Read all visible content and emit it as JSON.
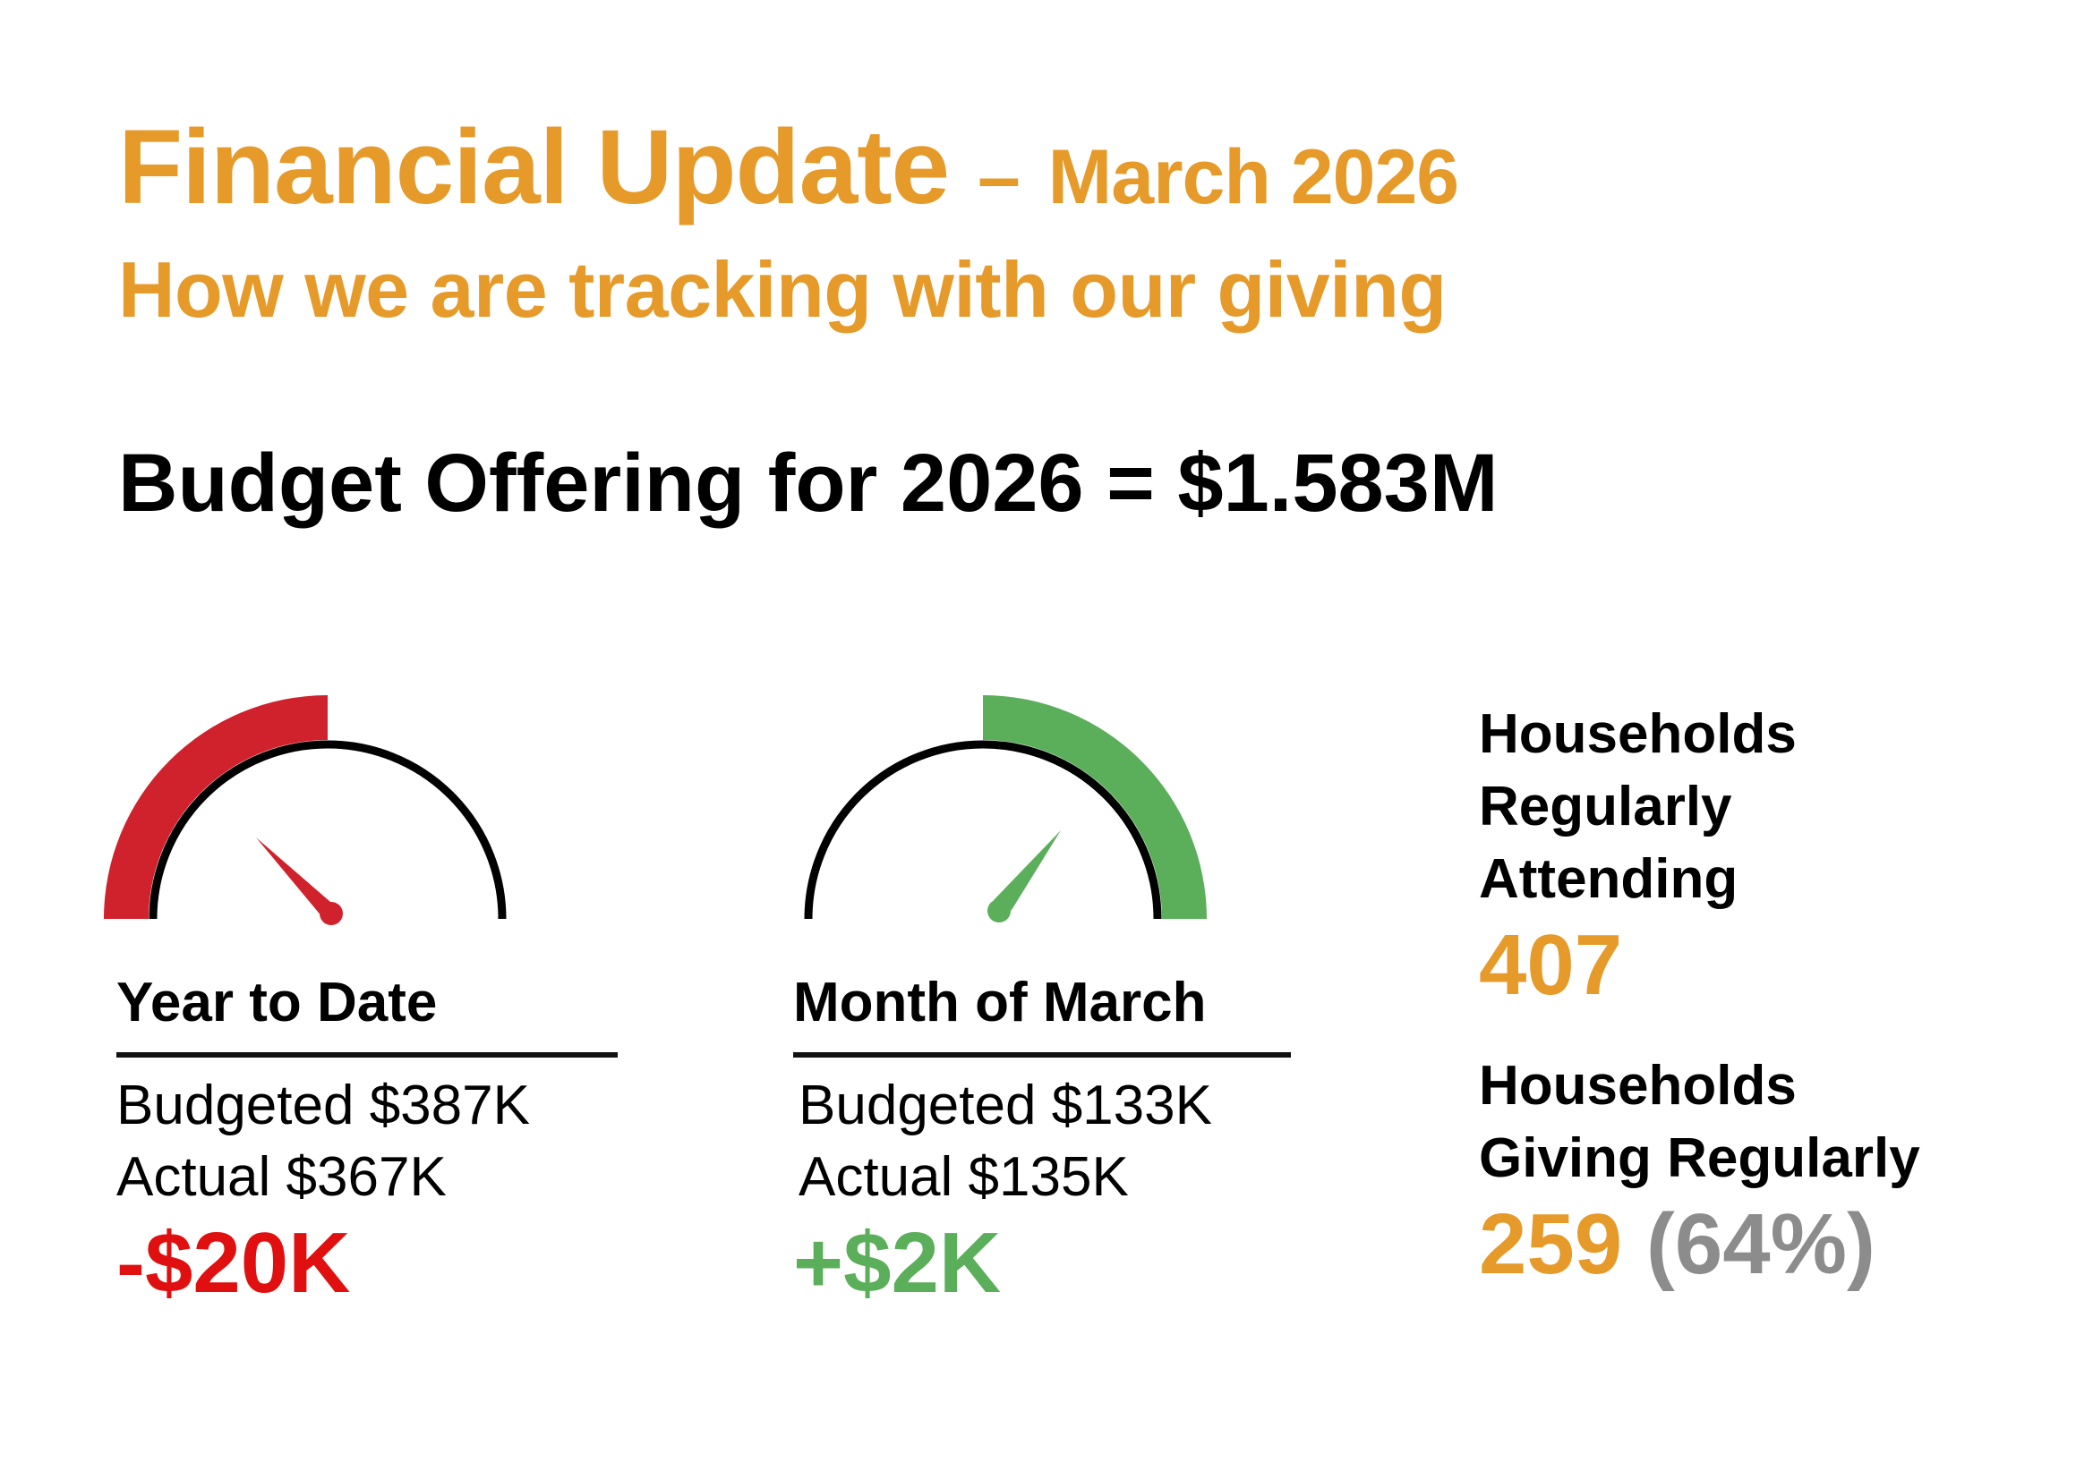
{
  "header": {
    "title": "Financial Update",
    "dash": "–",
    "month": "March 2026",
    "subtitle": "How we are tracking with our giving"
  },
  "budget_line": "Budget Offering for 2026 = $1.583M",
  "panels": [
    {
      "heading": "Year to Date",
      "budgeted": "Budgeted $387K",
      "actual": "Actual $367K",
      "delta": "-$20K",
      "status": "below",
      "status_color": "#E01010",
      "gauge_icon": "speedometer-low-icon"
    },
    {
      "heading": "Month of March",
      "budgeted": "Budgeted $133K",
      "actual": "Actual $135K",
      "delta": "+$2K",
      "status": "above",
      "status_color": "#5BAE5A",
      "gauge_icon": "speedometer-high-icon"
    }
  ],
  "stats": {
    "attending_label": "Households Regularly Attending",
    "attending_value": "407",
    "giving_label": "Households Giving Regularly",
    "giving_value": "259",
    "giving_percent": "(64%)"
  },
  "colors": {
    "accent": "#E59A2A",
    "negative": "#E01010",
    "positive": "#5BAE5A",
    "muted": "#8C8C8C"
  }
}
